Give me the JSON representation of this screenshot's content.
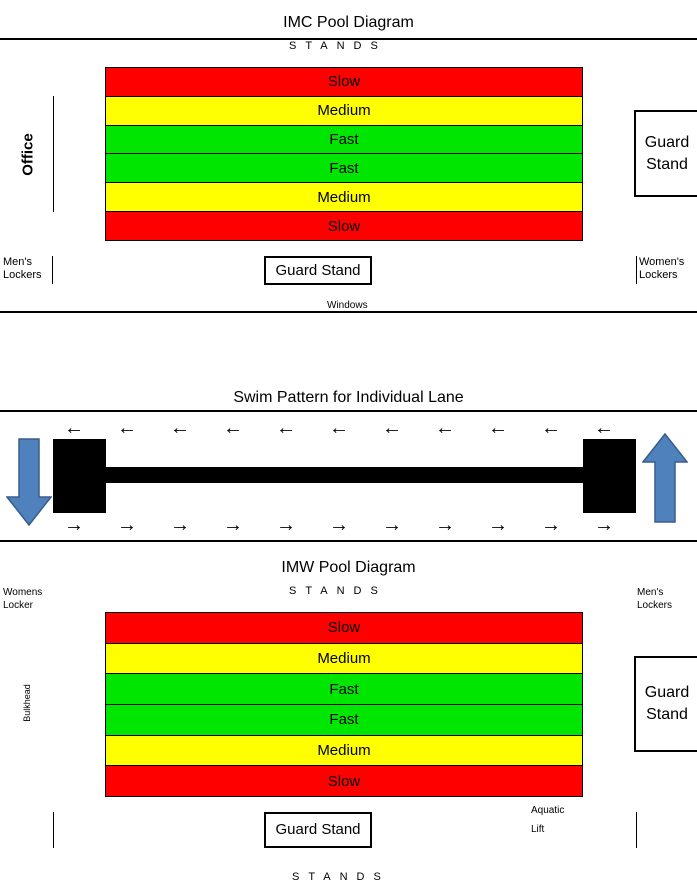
{
  "imc": {
    "title": "IMC Pool Diagram",
    "stands_top": "STANDS",
    "lanes": [
      "Slow",
      "Medium",
      "Fast",
      "Fast",
      "Medium",
      "Slow"
    ],
    "office": "Office",
    "guard_stand_right": "Guard Stand",
    "guard_stand_bottom": "Guard Stand",
    "mens_lockers": "Men's Lockers",
    "womens_lockers": "Women's Lockers",
    "windows": "Windows"
  },
  "swim": {
    "title": "Swim Pattern for Individual Lane",
    "arrow_left_glyph": "←",
    "arrow_right_glyph": "→"
  },
  "imw": {
    "title": "IMW Pool Diagram",
    "stands_top": "STANDS",
    "stands_bottom": "STANDS",
    "lanes": [
      "Slow",
      "Medium",
      "Fast",
      "Fast",
      "Medium",
      "Slow"
    ],
    "womens_locker": "Womens Locker",
    "mens_lockers": "Men's Lockers",
    "bulkhead": "Bulkhead",
    "guard_stand_right": "Guard Stand",
    "guard_stand_bottom": "Guard Stand",
    "aquatic_lift": "Aquatic Lift"
  },
  "colors": {
    "slow": "#ff0000",
    "medium": "#ffff00",
    "fast": "#00e600",
    "blue_arrow": "#4f81bd"
  }
}
